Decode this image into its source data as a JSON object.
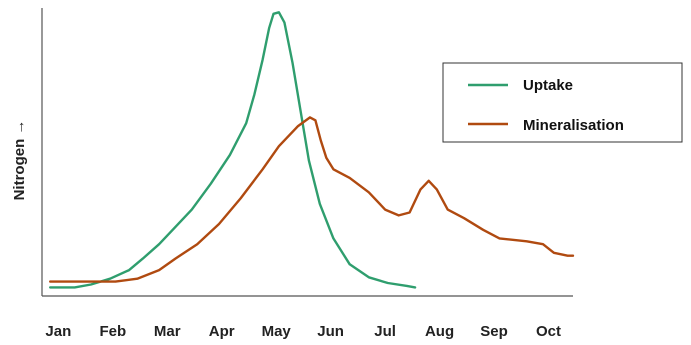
{
  "chart_data": {
    "type": "line",
    "title": "",
    "xlabel": "",
    "ylabel": "Nitrogen →",
    "categories": [
      "Jan",
      "Feb",
      "Mar",
      "Apr",
      "May",
      "Jun",
      "Jul",
      "Aug",
      "Sep",
      "Oct"
    ],
    "xlim": [
      0.7,
      10.45
    ],
    "ylim": [
      0,
      100
    ],
    "grid": false,
    "y_tick_labels": false,
    "legend": {
      "position": "right"
    },
    "series": [
      {
        "name": "Uptake",
        "color": "#2f9e6e",
        "points": [
          [
            0.85,
            3
          ],
          [
            1.3,
            3
          ],
          [
            1.6,
            4
          ],
          [
            1.95,
            6
          ],
          [
            2.3,
            9
          ],
          [
            2.55,
            13
          ],
          [
            2.85,
            18
          ],
          [
            3.1,
            23
          ],
          [
            3.45,
            30
          ],
          [
            3.8,
            39
          ],
          [
            4.15,
            49
          ],
          [
            4.45,
            60
          ],
          [
            4.6,
            70
          ],
          [
            4.75,
            82
          ],
          [
            4.87,
            93
          ],
          [
            4.95,
            98
          ],
          [
            5.05,
            98.5
          ],
          [
            5.15,
            95
          ],
          [
            5.3,
            81
          ],
          [
            5.45,
            64
          ],
          [
            5.6,
            47
          ],
          [
            5.8,
            32
          ],
          [
            6.05,
            20
          ],
          [
            6.35,
            11
          ],
          [
            6.7,
            6.5
          ],
          [
            7.05,
            4.5
          ],
          [
            7.4,
            3.5
          ],
          [
            7.55,
            3
          ]
        ]
      },
      {
        "name": "Mineralisation",
        "color": "#b04a10",
        "points": [
          [
            0.85,
            5
          ],
          [
            1.3,
            5
          ],
          [
            1.7,
            5
          ],
          [
            2.05,
            5
          ],
          [
            2.45,
            6
          ],
          [
            2.85,
            9
          ],
          [
            3.15,
            13
          ],
          [
            3.55,
            18
          ],
          [
            3.95,
            25
          ],
          [
            4.35,
            34
          ],
          [
            4.75,
            44
          ],
          [
            5.05,
            52
          ],
          [
            5.4,
            59
          ],
          [
            5.62,
            62
          ],
          [
            5.72,
            61
          ],
          [
            5.82,
            54
          ],
          [
            5.92,
            48
          ],
          [
            6.05,
            44
          ],
          [
            6.35,
            41
          ],
          [
            6.7,
            36
          ],
          [
            7.0,
            30
          ],
          [
            7.25,
            28
          ],
          [
            7.45,
            29
          ],
          [
            7.65,
            37
          ],
          [
            7.8,
            40
          ],
          [
            7.95,
            37
          ],
          [
            8.15,
            30
          ],
          [
            8.45,
            27
          ],
          [
            8.8,
            23
          ],
          [
            9.1,
            20
          ],
          [
            9.6,
            19
          ],
          [
            9.9,
            18
          ],
          [
            10.1,
            15
          ],
          [
            10.35,
            14
          ],
          [
            10.45,
            14
          ]
        ]
      }
    ]
  }
}
